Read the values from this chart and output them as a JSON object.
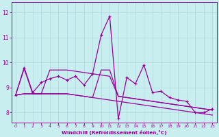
{
  "xlabel": "Windchill (Refroidissement éolien,°C)",
  "background_color": "#c8eef0",
  "grid_color": "#b0d8dc",
  "line_color": "#990099",
  "axis_color": "#990099",
  "x_ticks": [
    0,
    1,
    2,
    3,
    4,
    5,
    6,
    7,
    8,
    9,
    10,
    11,
    12,
    13,
    14,
    15,
    16,
    17,
    18,
    19,
    20,
    21,
    22,
    23
  ],
  "y_ticks": [
    8,
    9,
    10,
    11,
    12
  ],
  "ylim": [
    7.6,
    12.4
  ],
  "xlim": [
    -0.5,
    23.5
  ],
  "series": [
    [
      8.7,
      9.8,
      8.8,
      9.2,
      9.35,
      9.45,
      9.3,
      9.45,
      9.1,
      9.55,
      11.1,
      11.85,
      7.75,
      9.4,
      9.15,
      9.9,
      8.8,
      8.85,
      8.6,
      8.5,
      8.45,
      8.0,
      8.0,
      8.15
    ],
    [
      8.7,
      8.75,
      8.75,
      8.75,
      8.75,
      8.75,
      8.75,
      8.7,
      8.65,
      8.6,
      8.55,
      8.5,
      8.45,
      8.4,
      8.35,
      8.3,
      8.25,
      8.2,
      8.15,
      8.1,
      8.05,
      8.0,
      7.95,
      7.9
    ],
    [
      8.7,
      9.75,
      8.75,
      8.75,
      8.75,
      8.75,
      8.75,
      8.7,
      8.65,
      8.6,
      9.7,
      9.7,
      8.65,
      8.6,
      8.55,
      8.5,
      8.45,
      8.4,
      8.35,
      8.3,
      8.25,
      8.2,
      8.15,
      8.1
    ],
    [
      8.7,
      8.75,
      8.75,
      8.75,
      9.7,
      9.7,
      9.7,
      9.65,
      9.6,
      9.55,
      9.5,
      9.45,
      8.65,
      8.6,
      8.55,
      8.5,
      8.45,
      8.4,
      8.35,
      8.3,
      8.25,
      8.2,
      8.15,
      8.1
    ]
  ]
}
